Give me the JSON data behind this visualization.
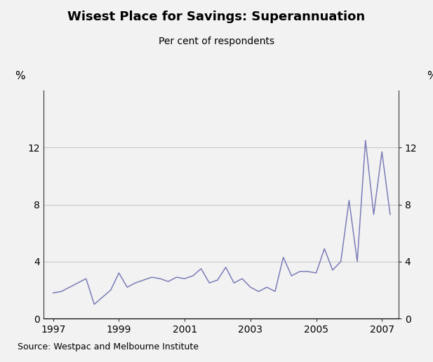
{
  "title": "Wisest Place for Savings: Superannuation",
  "subtitle": "Per cent of respondents",
  "source": "Source: Westpac and Melbourne Institute",
  "line_color": "#7b7db8",
  "fig_background": "#f2f2f2",
  "plot_background": "#f2f2f2",
  "ylim": [
    0,
    16
  ],
  "yticks": [
    0,
    4,
    8,
    12
  ],
  "ylabel_left": "%",
  "ylabel_right": "%",
  "x_dates": [
    1997.0,
    1997.25,
    1997.5,
    1997.75,
    1998.0,
    1998.25,
    1998.5,
    1998.75,
    1999.0,
    1999.25,
    1999.5,
    1999.75,
    2000.0,
    2000.25,
    2000.5,
    2000.75,
    2001.0,
    2001.25,
    2001.5,
    2001.75,
    2002.0,
    2002.25,
    2002.5,
    2002.75,
    2003.0,
    2003.25,
    2003.5,
    2003.75,
    2004.0,
    2004.25,
    2004.5,
    2004.75,
    2005.0,
    2005.25,
    2005.5,
    2005.75,
    2006.0,
    2006.25,
    2006.5,
    2006.75,
    2007.0,
    2007.25
  ],
  "y_values": [
    1.8,
    1.9,
    2.2,
    2.5,
    2.8,
    1.0,
    1.5,
    2.0,
    3.2,
    2.2,
    2.5,
    2.7,
    2.9,
    2.8,
    2.6,
    2.9,
    2.8,
    3.0,
    3.5,
    2.5,
    2.7,
    3.6,
    2.5,
    2.8,
    2.2,
    1.9,
    2.2,
    1.9,
    4.3,
    3.0,
    3.3,
    3.3,
    3.2,
    4.9,
    3.4,
    4.0,
    8.3,
    4.0,
    12.5,
    7.3,
    11.7,
    7.3
  ],
  "xtick_positions": [
    1997,
    1999,
    2001,
    2003,
    2005,
    2007
  ],
  "xtick_labels": [
    "1997",
    "1999",
    "2001",
    "2003",
    "2005",
    "2007"
  ],
  "grid_color": "#c8c8c8",
  "grid_linewidth": 0.8
}
